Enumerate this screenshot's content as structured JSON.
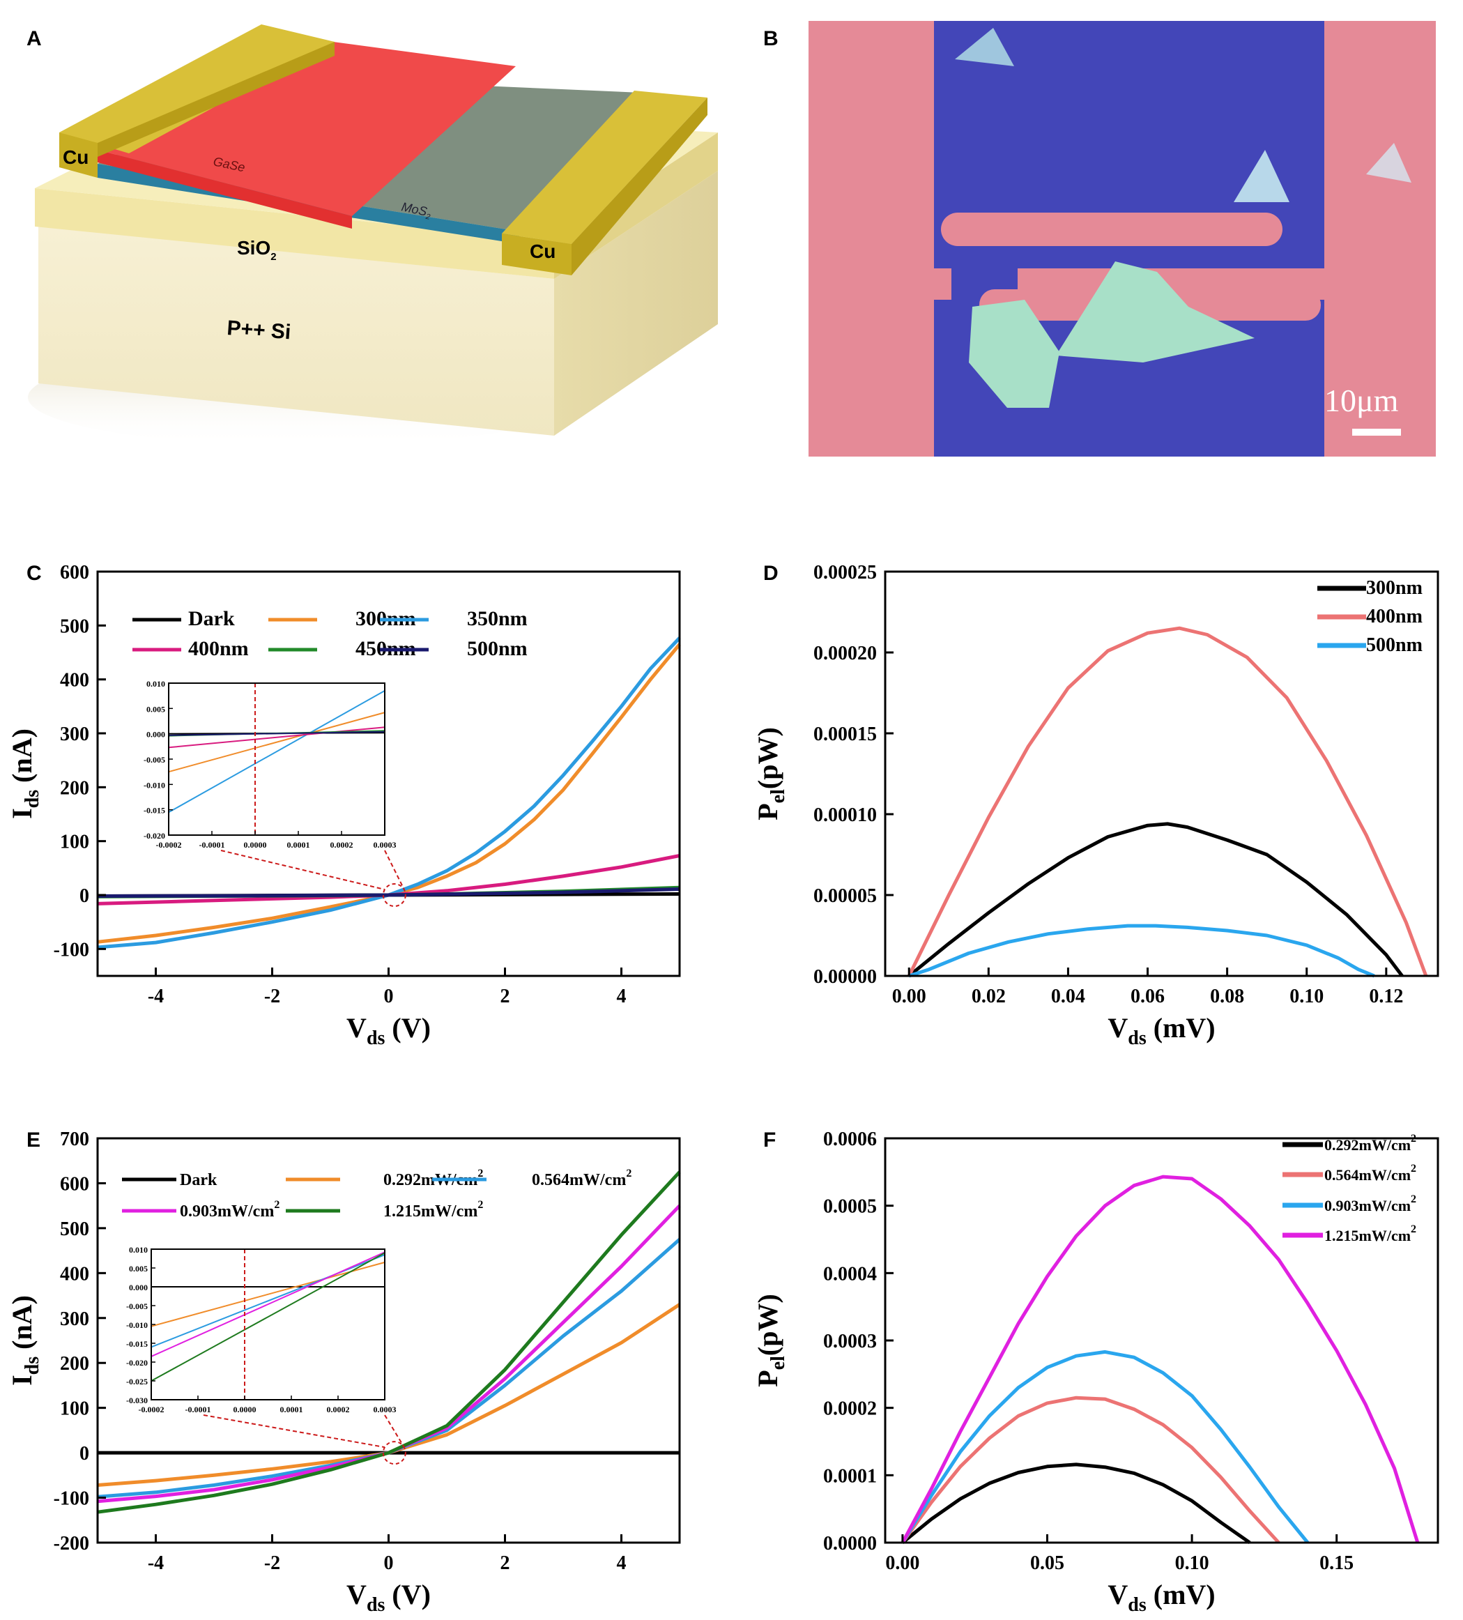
{
  "panel_labels": {
    "a": "A",
    "b": "B",
    "c": "C",
    "d": "D",
    "e": "E",
    "f": "F"
  },
  "device": {
    "cu_left": "Cu",
    "cu_right": "Cu",
    "gase": "GaSe",
    "mos2_base": "MoS",
    "mos2_sub": "2",
    "sio2_base": "SiO",
    "sio2_sub": "2",
    "si": "P++ Si",
    "colors": {
      "gold": "#c9b22a",
      "gase": "#f04a4a",
      "mos2": "#7f8f80",
      "substrate": "#f3ecc4",
      "si": "#f7f2d9"
    }
  },
  "micrograph": {
    "scale_label": "10μm",
    "colors": {
      "background": "#e58a97",
      "oxide": "#4346b8",
      "flake": "#a8e0c8"
    }
  },
  "chart_data": [
    {
      "id": "C",
      "type": "line",
      "xlabel": "V",
      "xlabel_sub": "ds",
      "xlabel_unit": " (V)",
      "ylabel": "I",
      "ylabel_sub": "ds",
      "ylabel_unit": " (nA)",
      "xlim": [
        -5,
        5
      ],
      "ylim": [
        -150,
        600
      ],
      "xticks": [
        -4,
        -2,
        0,
        2,
        4
      ],
      "yticks": [
        -100,
        0,
        100,
        200,
        300,
        400,
        500,
        600
      ],
      "xtick_labels": [
        "-4",
        "-2",
        "0",
        "2",
        "4"
      ],
      "ytick_labels": [
        "-100",
        "0",
        "100",
        "200",
        "300",
        "400",
        "500",
        "600"
      ],
      "series": [
        {
          "name": "Dark",
          "color": "#000000",
          "x": [
            -5,
            5
          ],
          "y": [
            -2,
            2
          ]
        },
        {
          "name": "300nm",
          "color": "#f08c2a",
          "x": [
            -5,
            -4,
            -3,
            -2,
            -1,
            0,
            0.5,
            1,
            1.5,
            2,
            2.5,
            3,
            3.5,
            4,
            4.5,
            5
          ],
          "y": [
            -87,
            -75,
            -60,
            -43,
            -22,
            0,
            14,
            35,
            60,
            95,
            140,
            195,
            262,
            330,
            400,
            465
          ]
        },
        {
          "name": "350nm",
          "color": "#2b9be0",
          "x": [
            -5,
            -4,
            -3,
            -2,
            -1,
            0,
            0.5,
            1,
            1.5,
            2,
            2.5,
            3,
            3.5,
            4,
            4.5,
            5
          ],
          "y": [
            -97,
            -88,
            -70,
            -50,
            -28,
            0,
            20,
            45,
            78,
            118,
            165,
            222,
            285,
            350,
            420,
            477
          ]
        },
        {
          "name": "400nm",
          "color": "#d81b7f",
          "x": [
            -5,
            -4,
            -3,
            -2,
            -1,
            0,
            1,
            2,
            3,
            4,
            5
          ],
          "y": [
            -16,
            -13,
            -10,
            -7,
            -4,
            0,
            8,
            20,
            35,
            52,
            73
          ]
        },
        {
          "name": "450nm",
          "color": "#228a2a",
          "x": [
            -5,
            -3,
            -1,
            0,
            1,
            3,
            5
          ],
          "y": [
            -3,
            -2,
            -1,
            0,
            2,
            7,
            14
          ]
        },
        {
          "name": "500nm",
          "color": "#1a1a6e",
          "x": [
            -5,
            -3,
            -1,
            0,
            1,
            3,
            5
          ],
          "y": [
            -2,
            -1.5,
            -0.5,
            0,
            1.5,
            5,
            11
          ]
        }
      ],
      "inset": {
        "xlim": [
          -0.0002,
          0.0003
        ],
        "ylim": [
          -0.02,
          0.01
        ],
        "xticks": [
          -0.0002,
          -0.0001,
          0,
          0.0001,
          0.0002,
          0.0003
        ],
        "yticks": [
          -0.02,
          -0.015,
          -0.01,
          -0.005,
          0,
          0.005,
          0.01
        ],
        "xtick_labels": [
          "-0.0002",
          "-0.0001",
          "0.0000",
          "0.0001",
          "0.0002",
          "0.0003"
        ],
        "ytick_labels": [
          "-0.020",
          "-0.015",
          "-0.010",
          "-0.005",
          "0.000",
          "0.005",
          "0.010"
        ],
        "series": [
          {
            "name": "Dark",
            "color": "#000000",
            "x": [
              -0.0002,
              0.0003
            ],
            "y": [
              0.0,
              0.0002
            ]
          },
          {
            "name": "300nm",
            "color": "#f08c2a",
            "x": [
              -0.0002,
              0.0003
            ],
            "y": [
              -0.0075,
              0.0042
            ]
          },
          {
            "name": "350nm",
            "color": "#2b9be0",
            "x": [
              -0.0002,
              0.0003
            ],
            "y": [
              -0.0155,
              0.0085
            ]
          },
          {
            "name": "400nm",
            "color": "#d81b7f",
            "x": [
              -0.0002,
              0.0003
            ],
            "y": [
              -0.0027,
              0.0013
            ]
          },
          {
            "name": "450nm",
            "color": "#228a2a",
            "x": [
              -0.0002,
              0.0003
            ],
            "y": [
              -0.0004,
              0.0006
            ]
          },
          {
            "name": "500nm",
            "color": "#1a1a6e",
            "x": [
              -0.0002,
              0.0003
            ],
            "y": [
              -0.0003,
              0.0004
            ]
          }
        ]
      }
    },
    {
      "id": "D",
      "type": "line",
      "xlabel": "V",
      "xlabel_sub": "ds",
      "xlabel_unit": " (mV)",
      "ylabel": "P",
      "ylabel_sub": "el",
      "ylabel_unit": "(pW)",
      "xlim": [
        -0.006,
        0.133
      ],
      "ylim": [
        0,
        0.00025
      ],
      "xticks": [
        0,
        0.02,
        0.04,
        0.06,
        0.08,
        0.1,
        0.12
      ],
      "yticks": [
        0,
        5e-05,
        0.0001,
        0.00015,
        0.0002,
        0.00025
      ],
      "xtick_labels": [
        "0.00",
        "0.02",
        "0.04",
        "0.06",
        "0.08",
        "0.10",
        "0.12"
      ],
      "ytick_labels": [
        "0.00000",
        "0.00005",
        "0.00010",
        "0.00015",
        "0.00020",
        "0.00025"
      ],
      "series": [
        {
          "name": "300nm",
          "color": "#000000",
          "x": [
            0,
            0.01,
            0.02,
            0.03,
            0.04,
            0.05,
            0.06,
            0.065,
            0.07,
            0.08,
            0.09,
            0.1,
            0.11,
            0.12,
            0.124
          ],
          "y": [
            0,
            2e-05,
            3.9e-05,
            5.7e-05,
            7.3e-05,
            8.6e-05,
            9.3e-05,
            9.4e-05,
            9.2e-05,
            8.4e-05,
            7.5e-05,
            5.8e-05,
            3.8e-05,
            1.3e-05,
            0
          ]
        },
        {
          "name": "400nm",
          "color": "#ec7373",
          "x": [
            0,
            0.01,
            0.02,
            0.03,
            0.04,
            0.05,
            0.06,
            0.068,
            0.075,
            0.085,
            0.095,
            0.105,
            0.115,
            0.125,
            0.13
          ],
          "y": [
            0,
            5e-05,
            9.8e-05,
            0.000142,
            0.000178,
            0.000201,
            0.000212,
            0.000215,
            0.000211,
            0.000197,
            0.000172,
            0.000133,
            8.7e-05,
            3.3e-05,
            0
          ]
        },
        {
          "name": "500nm",
          "color": "#2aa6ee",
          "x": [
            0,
            0.005,
            0.015,
            0.025,
            0.035,
            0.045,
            0.055,
            0.062,
            0.07,
            0.08,
            0.09,
            0.1,
            0.108,
            0.113,
            0.117
          ],
          "y": [
            0,
            4e-06,
            1.4e-05,
            2.1e-05,
            2.6e-05,
            2.9e-05,
            3.1e-05,
            3.1e-05,
            3e-05,
            2.8e-05,
            2.5e-05,
            1.9e-05,
            1.1e-05,
            4e-06,
            0
          ]
        }
      ]
    },
    {
      "id": "E",
      "type": "line",
      "xlabel": "V",
      "xlabel_sub": "ds",
      "xlabel_unit": " (V)",
      "ylabel": "I",
      "ylabel_sub": "ds",
      "ylabel_unit": " (nA)",
      "xlim": [
        -5,
        5
      ],
      "ylim": [
        -200,
        700
      ],
      "xticks": [
        -4,
        -2,
        0,
        2,
        4
      ],
      "yticks": [
        -200,
        -100,
        0,
        100,
        200,
        300,
        400,
        500,
        600,
        700
      ],
      "xtick_labels": [
        "-4",
        "-2",
        "0",
        "2",
        "4"
      ],
      "ytick_labels": [
        "-200",
        "-100",
        "0",
        "100",
        "200",
        "300",
        "400",
        "500",
        "600",
        "700"
      ],
      "series": [
        {
          "name": "Dark",
          "label": "Dark",
          "color": "#000000",
          "x": [
            -5,
            5
          ],
          "y": [
            0,
            0
          ]
        },
        {
          "name": "0.292mW/cm2",
          "label": "0.292mW/cm",
          "color": "#f08c2a",
          "x": [
            -5,
            -4,
            -3,
            -2,
            -1,
            0,
            1,
            2,
            3,
            4,
            5
          ],
          "y": [
            -72,
            -62,
            -50,
            -36,
            -20,
            0,
            40,
            105,
            175,
            245,
            330
          ]
        },
        {
          "name": "0.564mW/cm2",
          "label": "0.564mW/cm",
          "color": "#2b9be0",
          "x": [
            -5,
            -4,
            -3,
            -2,
            -1,
            0,
            1,
            2,
            3,
            4,
            5
          ],
          "y": [
            -98,
            -88,
            -72,
            -52,
            -28,
            0,
            50,
            150,
            260,
            360,
            475
          ]
        },
        {
          "name": "0.903mW/cm2",
          "label": "0.903mW/cm",
          "color": "#e020e0",
          "x": [
            -5,
            -4,
            -3,
            -2,
            -1,
            0,
            1,
            2,
            3,
            4,
            5
          ],
          "y": [
            -108,
            -97,
            -82,
            -60,
            -32,
            0,
            55,
            165,
            290,
            415,
            550
          ]
        },
        {
          "name": "1.215mW/cm2",
          "label": "1.215mW/cm",
          "color": "#1e7a1e",
          "x": [
            -5,
            -4,
            -3,
            -2,
            -1,
            0,
            1,
            2,
            3,
            4,
            5
          ],
          "y": [
            -132,
            -115,
            -95,
            -70,
            -38,
            0,
            60,
            185,
            335,
            485,
            625
          ]
        }
      ],
      "inset": {
        "xlim": [
          -0.0002,
          0.0003
        ],
        "ylim": [
          -0.03,
          0.01
        ],
        "xticks": [
          -0.0002,
          -0.0001,
          0,
          0.0001,
          0.0002,
          0.0003
        ],
        "yticks": [
          -0.03,
          -0.025,
          -0.02,
          -0.015,
          -0.01,
          -0.005,
          0,
          0.005,
          0.01
        ],
        "xtick_labels": [
          "-0.0002",
          "-0.0001",
          "0.0000",
          "0.0001",
          "0.0002",
          "0.0003"
        ],
        "ytick_labels": [
          "-0.030",
          "-0.025",
          "-0.020",
          "-0.015",
          "-0.010",
          "-0.005",
          "0.000",
          "0.005",
          "0.010"
        ],
        "series": [
          {
            "name": "Dark",
            "color": "#000000",
            "x": [
              -0.0002,
              0.0003
            ],
            "y": [
              0,
              0
            ]
          },
          {
            "name": "0.292mW/cm2",
            "color": "#f08c2a",
            "x": [
              -0.0002,
              0.0003
            ],
            "y": [
              -0.0105,
              0.0065
            ]
          },
          {
            "name": "0.564mW/cm2",
            "color": "#2b9be0",
            "x": [
              -0.0002,
              0.0003
            ],
            "y": [
              -0.016,
              0.0085
            ]
          },
          {
            "name": "0.903mW/cm2",
            "color": "#e020e0",
            "x": [
              -0.0002,
              0.0003
            ],
            "y": [
              -0.0185,
              0.0092
            ]
          },
          {
            "name": "1.215mW/cm2",
            "color": "#1e7a1e",
            "x": [
              -0.0002,
              0.0003
            ],
            "y": [
              -0.025,
              0.009
            ]
          }
        ]
      }
    },
    {
      "id": "F",
      "type": "line",
      "xlabel": "V",
      "xlabel_sub": "ds",
      "xlabel_unit": " (mV)",
      "ylabel": "P",
      "ylabel_sub": "el",
      "ylabel_unit": "(pW)",
      "xlim": [
        -0.006,
        0.185
      ],
      "ylim": [
        0,
        0.0006
      ],
      "xticks": [
        0,
        0.05,
        0.1,
        0.15
      ],
      "yticks": [
        0,
        0.0001,
        0.0002,
        0.0003,
        0.0004,
        0.0005,
        0.0006
      ],
      "xtick_labels": [
        "0.00",
        "0.05",
        "0.10",
        "0.15"
      ],
      "ytick_labels": [
        "0.0000",
        "0.0001",
        "0.0002",
        "0.0003",
        "0.0004",
        "0.0005",
        "0.0006"
      ],
      "series": [
        {
          "name": "0.292mW/cm2",
          "label": "0.292mW/cm",
          "color": "#000000",
          "x": [
            0,
            0.01,
            0.02,
            0.03,
            0.04,
            0.05,
            0.06,
            0.07,
            0.08,
            0.09,
            0.1,
            0.11,
            0.12
          ],
          "y": [
            0,
            3.5e-05,
            6.5e-05,
            8.8e-05,
            0.000104,
            0.000113,
            0.000116,
            0.000112,
            0.000103,
            8.6e-05,
            6.2e-05,
            3e-05,
            0
          ]
        },
        {
          "name": "0.564mW/cm2",
          "label": "0.564mW/cm",
          "color": "#ec7373",
          "x": [
            0,
            0.01,
            0.02,
            0.03,
            0.04,
            0.05,
            0.06,
            0.07,
            0.08,
            0.09,
            0.1,
            0.11,
            0.12,
            0.13
          ],
          "y": [
            0,
            6e-05,
            0.000113,
            0.000155,
            0.000188,
            0.000207,
            0.000215,
            0.000213,
            0.000198,
            0.000175,
            0.000141,
            9.7e-05,
            4.7e-05,
            0
          ]
        },
        {
          "name": "0.903mW/cm2",
          "label": "0.903mW/cm",
          "color": "#2aa6ee",
          "x": [
            0,
            0.01,
            0.02,
            0.03,
            0.04,
            0.05,
            0.06,
            0.07,
            0.08,
            0.09,
            0.1,
            0.11,
            0.12,
            0.13,
            0.14
          ],
          "y": [
            0,
            7e-05,
            0.000135,
            0.000188,
            0.00023,
            0.00026,
            0.000277,
            0.000283,
            0.000275,
            0.000252,
            0.000218,
            0.000168,
            0.000112,
            5.3e-05,
            0
          ]
        },
        {
          "name": "1.215mW/cm2",
          "label": "1.215mW/cm",
          "color": "#e020e0",
          "x": [
            0,
            0.01,
            0.02,
            0.03,
            0.04,
            0.05,
            0.06,
            0.07,
            0.08,
            0.09,
            0.1,
            0.11,
            0.12,
            0.13,
            0.14,
            0.15,
            0.16,
            0.17,
            0.178
          ],
          "y": [
            0,
            8e-05,
            0.000165,
            0.000245,
            0.000325,
            0.000395,
            0.000455,
            0.0005,
            0.00053,
            0.000543,
            0.00054,
            0.00051,
            0.00047,
            0.00042,
            0.000355,
            0.000285,
            0.000205,
            0.00011,
            0
          ]
        }
      ]
    }
  ]
}
